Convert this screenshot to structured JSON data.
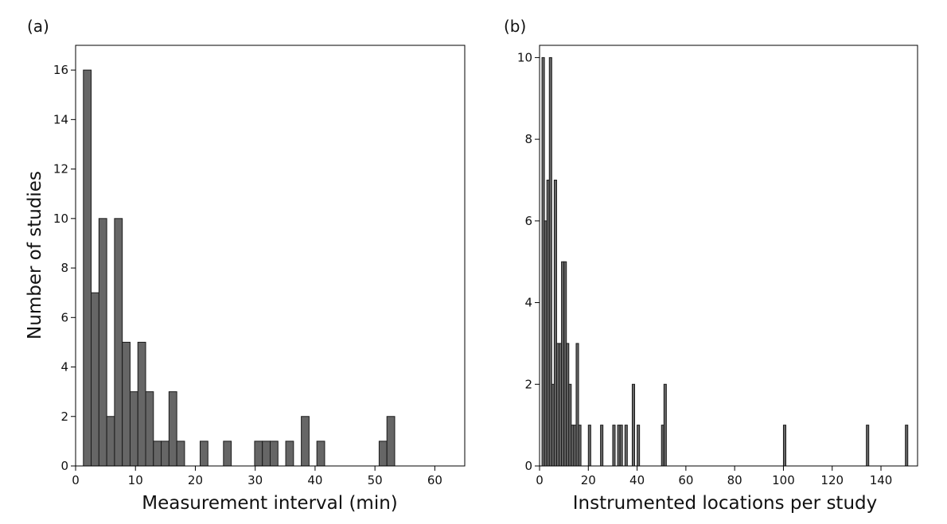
{
  "chart_data": [
    {
      "panel_label": "(a)",
      "type": "bar",
      "xlabel": "Measurement interval (min)",
      "ylabel": "Number of studies",
      "xlim": [
        0,
        65
      ],
      "ylim": [
        0,
        17
      ],
      "xticks": [
        0,
        10,
        20,
        30,
        40,
        50,
        60
      ],
      "yticks": [
        0,
        2,
        4,
        6,
        8,
        10,
        12,
        14,
        16
      ],
      "bin_width": 1.3,
      "bins": [
        {
          "x": 1.3,
          "value": 16
        },
        {
          "x": 2.6,
          "value": 7
        },
        {
          "x": 3.9,
          "value": 10
        },
        {
          "x": 5.2,
          "value": 2
        },
        {
          "x": 6.5,
          "value": 10
        },
        {
          "x": 7.8,
          "value": 5
        },
        {
          "x": 9.1,
          "value": 3
        },
        {
          "x": 10.4,
          "value": 5
        },
        {
          "x": 11.7,
          "value": 3
        },
        {
          "x": 13.0,
          "value": 1
        },
        {
          "x": 14.3,
          "value": 1
        },
        {
          "x": 15.6,
          "value": 3
        },
        {
          "x": 16.9,
          "value": 1
        },
        {
          "x": 20.8,
          "value": 1
        },
        {
          "x": 24.7,
          "value": 1
        },
        {
          "x": 29.9,
          "value": 1
        },
        {
          "x": 31.2,
          "value": 1
        },
        {
          "x": 32.5,
          "value": 1
        },
        {
          "x": 35.1,
          "value": 1
        },
        {
          "x": 37.7,
          "value": 2
        },
        {
          "x": 40.3,
          "value": 1
        },
        {
          "x": 50.7,
          "value": 1
        },
        {
          "x": 52.0,
          "value": 2
        }
      ]
    },
    {
      "panel_label": "(b)",
      "type": "bar",
      "xlabel": "Instrumented locations per study",
      "ylabel": "",
      "xlim": [
        0,
        155
      ],
      "ylim": [
        0,
        10.3
      ],
      "xticks": [
        0,
        20,
        40,
        60,
        80,
        100,
        120,
        140
      ],
      "yticks": [
        0,
        2,
        4,
        6,
        8,
        10
      ],
      "bin_width": 1,
      "bins": [
        {
          "x": 1,
          "value": 10
        },
        {
          "x": 2,
          "value": 6
        },
        {
          "x": 3,
          "value": 7
        },
        {
          "x": 4,
          "value": 10
        },
        {
          "x": 5,
          "value": 2
        },
        {
          "x": 6,
          "value": 7
        },
        {
          "x": 7,
          "value": 3
        },
        {
          "x": 8,
          "value": 3
        },
        {
          "x": 9,
          "value": 5
        },
        {
          "x": 10,
          "value": 5
        },
        {
          "x": 11,
          "value": 3
        },
        {
          "x": 12,
          "value": 2
        },
        {
          "x": 13,
          "value": 1
        },
        {
          "x": 14,
          "value": 1
        },
        {
          "x": 15,
          "value": 3
        },
        {
          "x": 16,
          "value": 1
        },
        {
          "x": 20,
          "value": 1
        },
        {
          "x": 25,
          "value": 1
        },
        {
          "x": 30,
          "value": 1
        },
        {
          "x": 32,
          "value": 1
        },
        {
          "x": 33,
          "value": 1
        },
        {
          "x": 35,
          "value": 1
        },
        {
          "x": 38,
          "value": 2
        },
        {
          "x": 40,
          "value": 1
        },
        {
          "x": 50,
          "value": 1
        },
        {
          "x": 51,
          "value": 2
        },
        {
          "x": 100,
          "value": 1
        },
        {
          "x": 134,
          "value": 1
        },
        {
          "x": 150,
          "value": 1
        }
      ]
    }
  ],
  "colors": {
    "bar_fill": "#666666",
    "bar_edge": "#1a1a1a",
    "axes": "#000000"
  }
}
